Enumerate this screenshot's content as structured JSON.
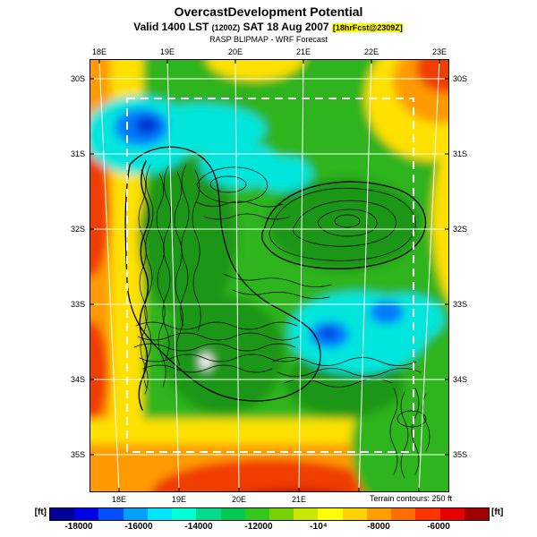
{
  "header": {
    "title": "OvercastDevelopment Potential",
    "valid_prefix": "Valid 1400 LST",
    "valid_zulu": "(1200Z)",
    "valid_date": "SAT 18 Aug 2007",
    "fcst_tag": "[18hrFcst@2309Z]",
    "source_line": "RASP BLIPMAP - WRF Forecast"
  },
  "map": {
    "lon_labels": [
      "18E",
      "19E",
      "20E",
      "21E",
      "22E",
      "23E"
    ],
    "lat_labels": [
      "30S",
      "31S",
      "32S",
      "33S",
      "34S",
      "35S"
    ],
    "terrain_note": "Terrain contours: 250 ft"
  },
  "colorbar": {
    "unit": "[ft]",
    "ticks": [
      "-18000",
      "-16000",
      "-14000",
      "-12000",
      "-10⁴",
      "-8000",
      "-6000"
    ],
    "colors": [
      "#000096",
      "#0000e6",
      "#0050ff",
      "#00a0ff",
      "#00e6ff",
      "#00ffd2",
      "#00dc8c",
      "#00c850",
      "#32c81e",
      "#78d200",
      "#c8e600",
      "#ffff00",
      "#ffd200",
      "#ffa000",
      "#ff6e00",
      "#ff3200",
      "#e60000",
      "#a00000"
    ]
  }
}
